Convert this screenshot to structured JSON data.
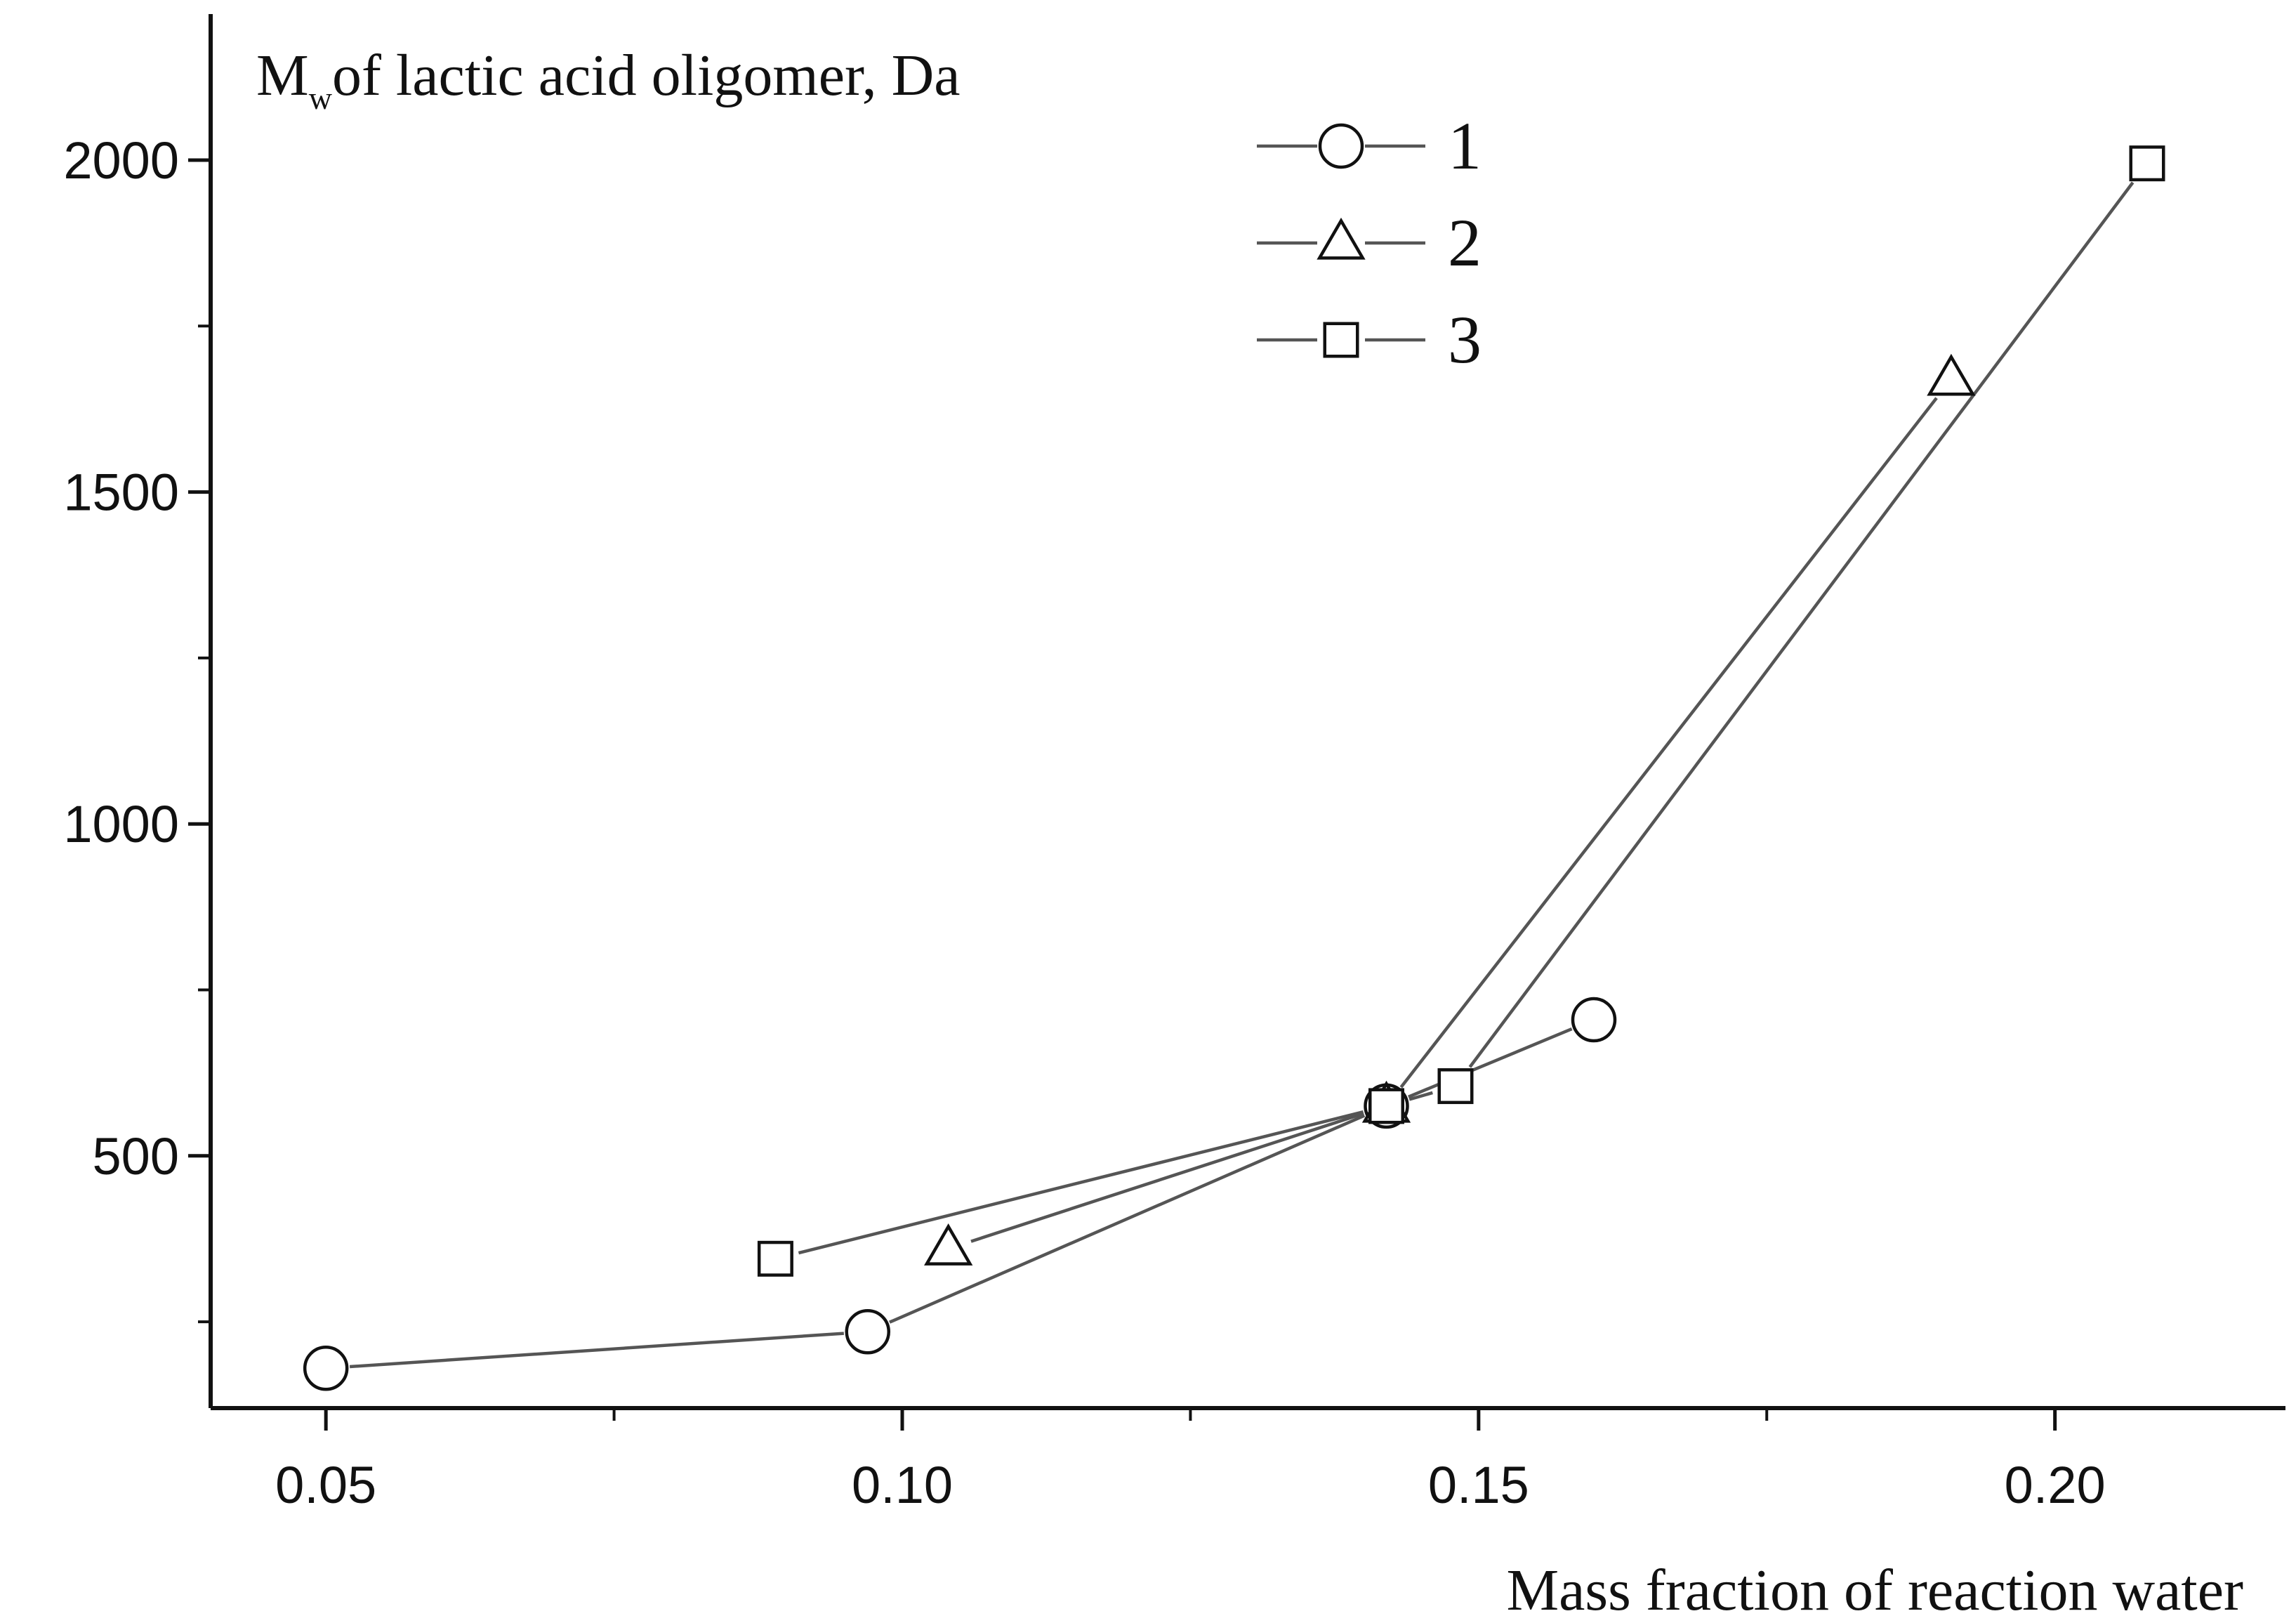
{
  "chart_data": {
    "type": "line",
    "title": "",
    "ylabel": {
      "main": "M",
      "subscript": "w",
      "rest": "of lactic acid oligomer, Da"
    },
    "xlabel": "Mass fraction of reaction water",
    "xlim": [
      0.04,
      0.22
    ],
    "ylim": [
      120,
      2220
    ],
    "x_ticks": [
      {
        "value": 0.05,
        "label": "0.05"
      },
      {
        "value": 0.1,
        "label": "0.10"
      },
      {
        "value": 0.15,
        "label": "0.15"
      },
      {
        "value": 0.2,
        "label": "0.20"
      }
    ],
    "x_minor_ticks": [
      0.075,
      0.125,
      0.175
    ],
    "y_ticks": [
      {
        "value": 500,
        "label": "500"
      },
      {
        "value": 1000,
        "label": "1000"
      },
      {
        "value": 1500,
        "label": "1500"
      },
      {
        "value": 2000,
        "label": "2000"
      }
    ],
    "y_minor_ticks": [
      250,
      750,
      1250,
      1750
    ],
    "grid": false,
    "legend_position": "top-center",
    "line_color": "#555555",
    "marker_color": "#111111",
    "series": [
      {
        "name": "1",
        "marker": "circle",
        "points": [
          {
            "x": 0.05,
            "y": 180
          },
          {
            "x": 0.097,
            "y": 235
          },
          {
            "x": 0.142,
            "y": 575
          },
          {
            "x": 0.16,
            "y": 705
          }
        ]
      },
      {
        "name": "2",
        "marker": "triangle",
        "points": [
          {
            "x": 0.104,
            "y": 360
          },
          {
            "x": 0.142,
            "y": 575
          },
          {
            "x": 0.191,
            "y": 1670
          }
        ]
      },
      {
        "name": "3",
        "marker": "square",
        "points": [
          {
            "x": 0.089,
            "y": 345
          },
          {
            "x": 0.142,
            "y": 575
          },
          {
            "x": 0.148,
            "y": 605
          },
          {
            "x": 0.208,
            "y": 1995
          }
        ]
      }
    ]
  }
}
